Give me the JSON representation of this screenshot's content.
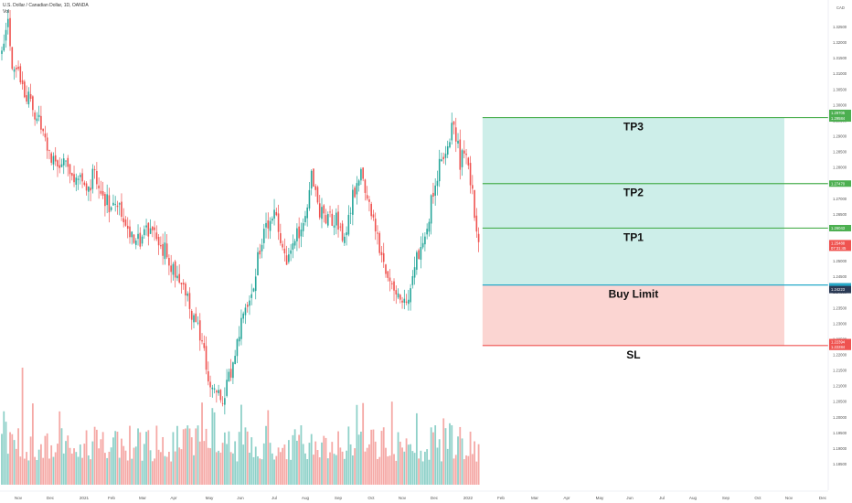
{
  "header": {
    "symbol_line": "U.S. Dollar / Canadian Dollar, 1D, OANDA",
    "volume_label": "Vol"
  },
  "currency_label": "CAD",
  "chart_data": {
    "type": "candlestick",
    "title": "",
    "price_axis": {
      "range": [
        1.1765,
        1.3335
      ],
      "ticks": [
        "1.32500",
        "1.32000",
        "1.31500",
        "1.31000",
        "1.30500",
        "1.30000",
        "1.29500",
        "1.29000",
        "1.28500",
        "1.28000",
        "1.27500",
        "1.27000",
        "1.26500",
        "1.26000",
        "1.25500",
        "1.25000",
        "1.24500",
        "1.24000",
        "1.23500",
        "1.23000",
        "1.22500",
        "1.22000",
        "1.21500",
        "1.21000",
        "1.20500",
        "1.20000",
        "1.19500",
        "1.19000",
        "1.18500"
      ]
    },
    "time_axis": {
      "ticks": [
        "Nov",
        "Dec",
        "2021",
        "Feb",
        "Mar",
        "Apr",
        "May",
        "Jun",
        "Jul",
        "Aug",
        "Sep",
        "Oct",
        "Nov",
        "Dec",
        "2022",
        "Feb",
        "Mar",
        "Apr",
        "May",
        "Jun",
        "Jul",
        "Aug",
        "Sep",
        "Oct",
        "Nov",
        "Dec"
      ]
    },
    "colors": {
      "up": "#26a69a",
      "down": "#ef5350",
      "tp": "#4caf50",
      "sl": "#ef5350",
      "entry": "#2196f3",
      "profit_zone": "#cdeee9",
      "loss_zone": "#fbd5d2"
    },
    "anchors": [
      [
        0,
        1.316
      ],
      [
        3,
        1.327
      ],
      [
        5,
        1.313
      ],
      [
        8,
        1.314
      ],
      [
        10,
        1.305
      ],
      [
        14,
        1.302
      ],
      [
        17,
        1.296
      ],
      [
        21,
        1.29
      ],
      [
        25,
        1.282
      ],
      [
        29,
        1.28
      ],
      [
        33,
        1.28
      ],
      [
        37,
        1.276
      ],
      [
        41,
        1.272
      ],
      [
        45,
        1.278
      ],
      [
        49,
        1.272
      ],
      [
        53,
        1.266
      ],
      [
        57,
        1.268
      ],
      [
        61,
        1.26
      ],
      [
        65,
        1.256
      ],
      [
        69,
        1.258
      ],
      [
        73,
        1.262
      ],
      [
        77,
        1.256
      ],
      [
        81,
        1.25
      ],
      [
        85,
        1.244
      ],
      [
        89,
        1.24
      ],
      [
        93,
        1.23
      ],
      [
        97,
        1.225
      ],
      [
        99,
        1.216
      ],
      [
        101,
        1.21
      ],
      [
        103,
        1.208
      ],
      [
        105,
        1.208
      ],
      [
        107,
        1.206
      ],
      [
        109,
        1.21
      ],
      [
        112,
        1.218
      ],
      [
        116,
        1.23
      ],
      [
        120,
        1.238
      ],
      [
        124,
        1.25
      ],
      [
        128,
        1.26
      ],
      [
        132,
        1.268
      ],
      [
        135,
        1.256
      ],
      [
        138,
        1.248
      ],
      [
        142,
        1.256
      ],
      [
        146,
        1.262
      ],
      [
        150,
        1.278
      ],
      [
        154,
        1.266
      ],
      [
        158,
        1.262
      ],
      [
        162,
        1.264
      ],
      [
        166,
        1.256
      ],
      [
        170,
        1.27
      ],
      [
        174,
        1.28
      ],
      [
        178,
        1.266
      ],
      [
        182,
        1.256
      ],
      [
        186,
        1.247
      ],
      [
        190,
        1.24
      ],
      [
        194,
        1.236
      ],
      [
        197,
        1.239
      ],
      [
        200,
        1.248
      ],
      [
        204,
        1.256
      ],
      [
        208,
        1.268
      ],
      [
        212,
        1.282
      ],
      [
        216,
        1.288
      ],
      [
        219,
        1.294
      ],
      [
        222,
        1.282
      ],
      [
        224,
        1.284
      ],
      [
        227,
        1.276
      ],
      [
        229,
        1.266
      ],
      [
        231,
        1.257
      ]
    ],
    "bar_count": 232,
    "last_price": "1.25488",
    "countdown": "07:31:45",
    "position": {
      "type": "long",
      "tp3": {
        "label": "TP3",
        "price": 1.29584,
        "axis_text": "1.29584"
      },
      "tp3_upper": {
        "price": 1.29705,
        "axis_text": "1.29705"
      },
      "tp2": {
        "label": "TP2",
        "price": 1.2747,
        "axis_text": "1.27470"
      },
      "tp1": {
        "label": "TP1",
        "price": 1.26043,
        "axis_text": "1.26043"
      },
      "entry": {
        "label": "Buy Limit",
        "price": 1.24223,
        "axis_text": "1.24223"
      },
      "sl": {
        "label": "SL",
        "price": 1.22284,
        "axis_text": "1.22284"
      },
      "sl_upper": {
        "price": 1.22394,
        "axis_text": "1.22394"
      },
      "start_bar": 232,
      "end_month_index": 23
    }
  }
}
